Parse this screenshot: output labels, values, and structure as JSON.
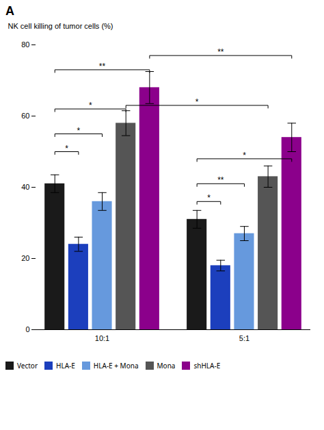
{
  "chart_data": {
    "type": "bar",
    "title": "A",
    "ylabel": "NK cell killing of tumor cells (%)",
    "categories": [
      "10:1",
      "5:1"
    ],
    "series": [
      {
        "name": "Vector",
        "color": "#1a1a1a",
        "values": [
          41,
          31
        ],
        "errors": [
          2.5,
          2.5
        ]
      },
      {
        "name": "HLA-E",
        "color": "#1c3fbd",
        "values": [
          24,
          18
        ],
        "errors": [
          2.0,
          1.5
        ]
      },
      {
        "name": "HLA-E + Mona",
        "color": "#6699dd",
        "values": [
          36,
          27
        ],
        "errors": [
          2.5,
          2.0
        ]
      },
      {
        "name": "Mona",
        "color": "#555555",
        "values": [
          58,
          43
        ],
        "errors": [
          3.5,
          3.0
        ]
      },
      {
        "name": "shHLA-E",
        "color": "#8b008b",
        "values": [
          68,
          54
        ],
        "errors": [
          4.5,
          4.0
        ]
      }
    ],
    "annotations": [
      {
        "text": "*",
        "from": {
          "category": "10:1",
          "series": "Vector"
        },
        "to": {
          "category": "10:1",
          "series": "HLA-E"
        },
        "y": 50
      },
      {
        "text": "*",
        "from": {
          "category": "10:1",
          "series": "Vector"
        },
        "to": {
          "category": "10:1",
          "series": "HLA-E + Mona"
        },
        "y": 55
      },
      {
        "text": "*",
        "from": {
          "category": "10:1",
          "series": "Vector"
        },
        "to": {
          "category": "10:1",
          "series": "Mona"
        },
        "y": 62
      },
      {
        "text": "**",
        "from": {
          "category": "10:1",
          "series": "Vector"
        },
        "to": {
          "category": "10:1",
          "series": "shHLA-E"
        },
        "y": 73
      },
      {
        "text": "**",
        "from": {
          "category": "10:1",
          "series": "shHLA-E"
        },
        "to": {
          "category": "5:1",
          "series": "shHLA-E"
        },
        "y": 77
      },
      {
        "text": "*",
        "from": {
          "category": "10:1",
          "series": "Mona"
        },
        "to": {
          "category": "5:1",
          "series": "Mona"
        },
        "y": 63
      },
      {
        "text": "*",
        "from": {
          "category": "5:1",
          "series": "Vector"
        },
        "to": {
          "category": "5:1",
          "series": "HLA-E"
        },
        "y": 36
      },
      {
        "text": "**",
        "from": {
          "category": "5:1",
          "series": "Vector"
        },
        "to": {
          "category": "5:1",
          "series": "HLA-E + Mona"
        },
        "y": 41
      },
      {
        "text": "*",
        "from": {
          "category": "5:1",
          "series": "Vector"
        },
        "to": {
          "category": "5:1",
          "series": "shHLA-E"
        },
        "y": 48
      }
    ],
    "ylim": [
      0,
      80
    ],
    "yticks": [
      0,
      20,
      40,
      60,
      80
    ],
    "grid": false,
    "legend": "bottom"
  }
}
